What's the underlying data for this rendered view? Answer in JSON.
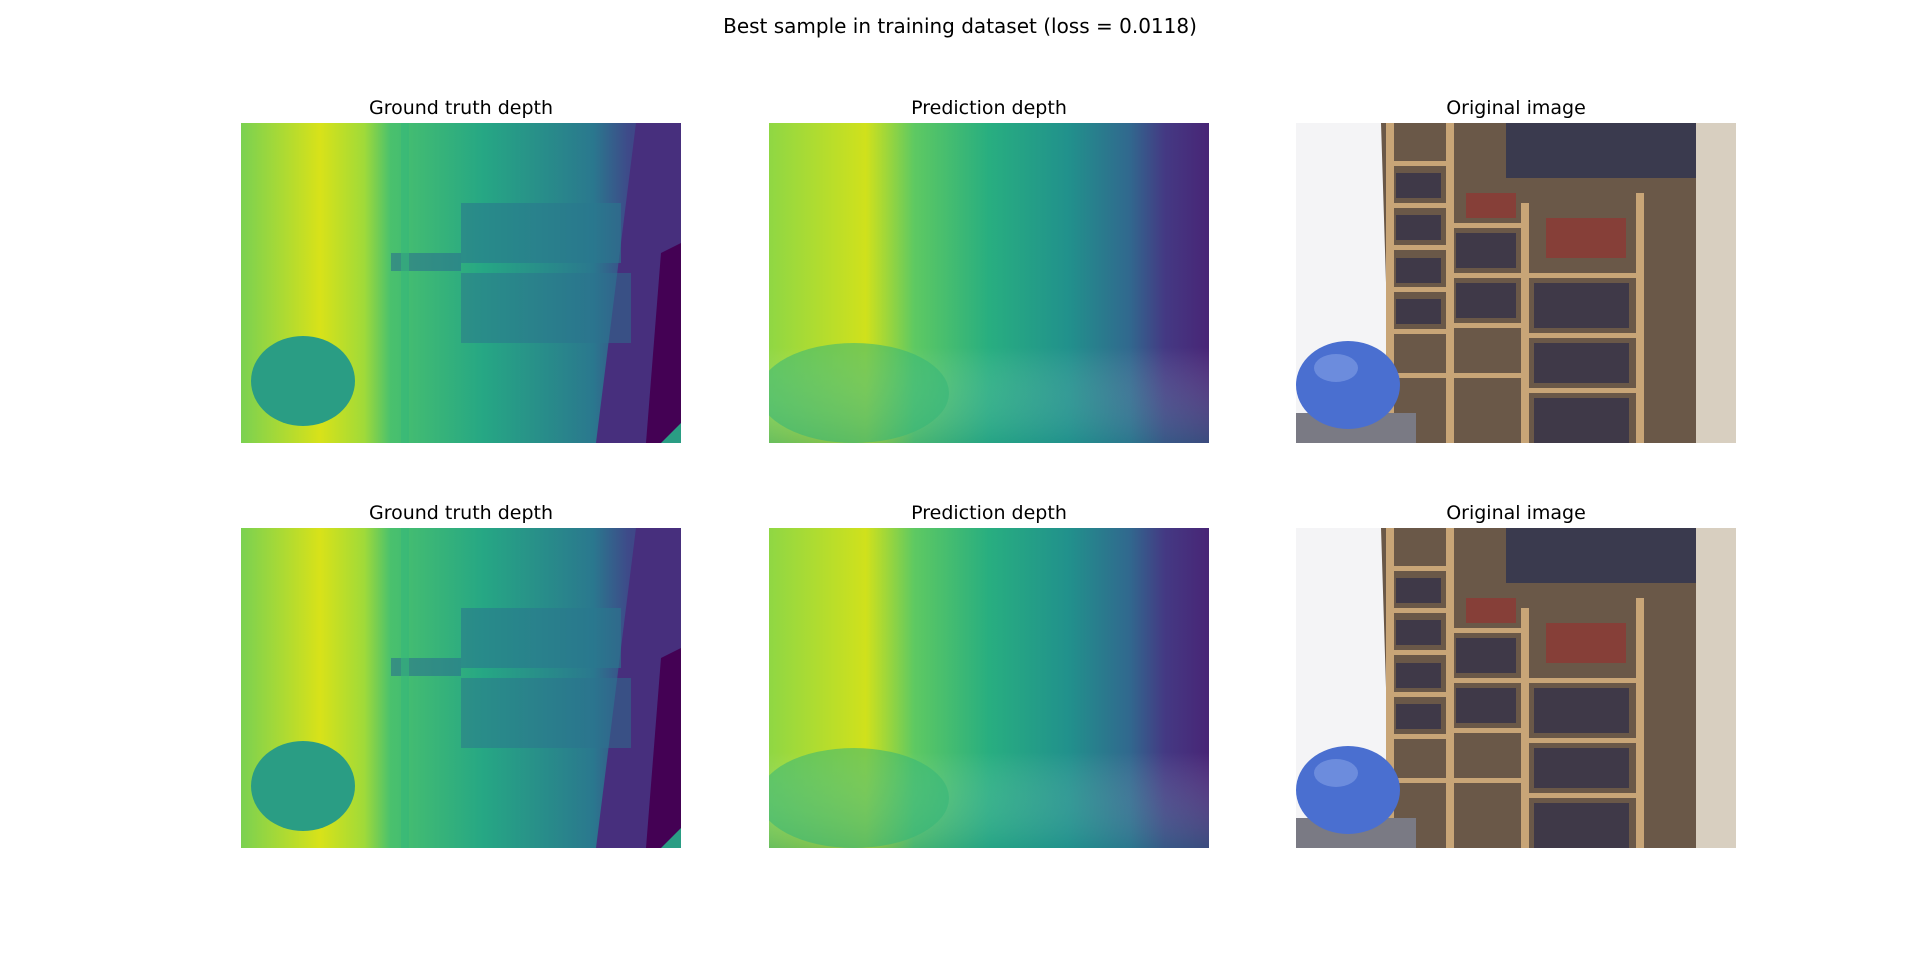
{
  "figure": {
    "suptitle": "Best sample in training dataset (loss = 0.0118)"
  },
  "panels": [
    {
      "title": "Ground truth depth",
      "kind": "depth-ground-truth"
    },
    {
      "title": "Prediction depth",
      "kind": "depth-prediction"
    },
    {
      "title": "Original image",
      "kind": "rgb-photo"
    },
    {
      "title": "Ground truth depth",
      "kind": "depth-ground-truth"
    },
    {
      "title": "Prediction depth",
      "kind": "depth-prediction"
    },
    {
      "title": "Original image",
      "kind": "rgb-photo"
    }
  ],
  "colormap": "viridis",
  "palette": {
    "viridis_yellow": "#fde725",
    "viridis_green": "#5ec962",
    "viridis_teal": "#21918c",
    "viridis_blue": "#3b528b",
    "viridis_purple": "#440154",
    "ball_blue": "#4a6fd0",
    "shelf_wood": "#b08a58"
  }
}
